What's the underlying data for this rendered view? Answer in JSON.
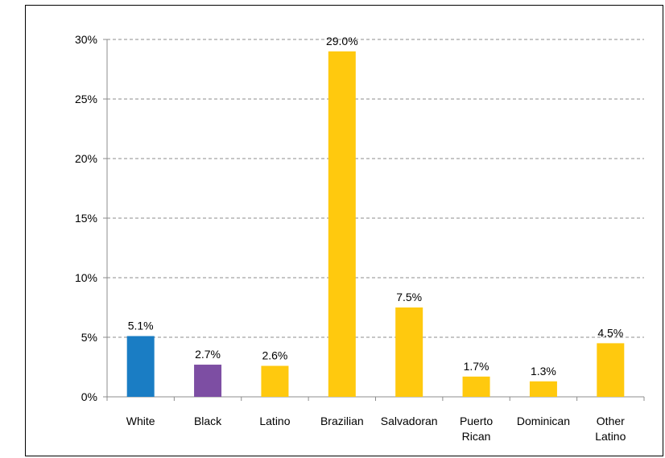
{
  "chart_data": {
    "type": "bar",
    "categories": [
      [
        "White"
      ],
      [
        "Black"
      ],
      [
        "Latino"
      ],
      [
        "Brazilian"
      ],
      [
        "Salvadoran"
      ],
      [
        "Puerto",
        "Rican"
      ],
      [
        "Dominican"
      ],
      [
        "Other",
        "Latino"
      ]
    ],
    "values": [
      5.1,
      2.7,
      2.6,
      29.0,
      7.5,
      1.7,
      1.3,
      4.5
    ],
    "data_labels": [
      "5.1%",
      "2.7%",
      "2.6%",
      "29.0%",
      "7.5%",
      "1.7%",
      "1.3%",
      "4.5%"
    ],
    "colors": [
      "#1a7dc4",
      "#7d4ea3",
      "#ffc90e",
      "#ffc90e",
      "#ffc90e",
      "#ffc90e",
      "#ffc90e",
      "#ffc90e"
    ],
    "ylim": [
      0,
      30
    ],
    "yticks": [
      0,
      5,
      10,
      15,
      20,
      25,
      30
    ],
    "ytick_labels": [
      "0%",
      "5%",
      "10%",
      "15%",
      "20%",
      "25%",
      "30%"
    ],
    "grid": "horizontal dashed",
    "title": "",
    "xlabel": "",
    "ylabel": ""
  }
}
